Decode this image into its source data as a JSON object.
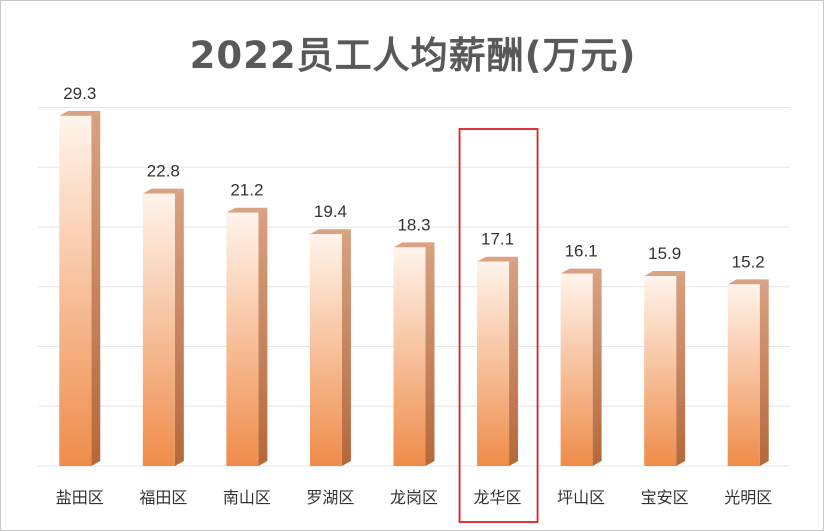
{
  "chart_data": {
    "type": "bar",
    "title": "2022员工人均薪酬(万元)",
    "categories": [
      "盐田区",
      "福田区",
      "南山区",
      "罗湖区",
      "龙岗区",
      "龙华区",
      "坪山区",
      "宝安区",
      "光明区"
    ],
    "values": [
      29.3,
      22.8,
      21.2,
      19.4,
      18.3,
      17.1,
      16.1,
      15.9,
      15.2
    ],
    "value_labels": [
      "29.3",
      "22.8",
      "21.2",
      "19.4",
      "18.3",
      "17.1",
      "16.1",
      "15.9",
      "15.2"
    ],
    "ylim": [
      0,
      35
    ],
    "grid": true,
    "legend": "none",
    "highlight_category": "龙华区",
    "colors": {
      "bar_light": "#fff4ec",
      "bar_dark": "#ef8c4a",
      "bar_side": "#b5683a",
      "bar_top": "#d8a283",
      "highlight_box": "#e02020",
      "grid": "#e6e6e6"
    }
  }
}
